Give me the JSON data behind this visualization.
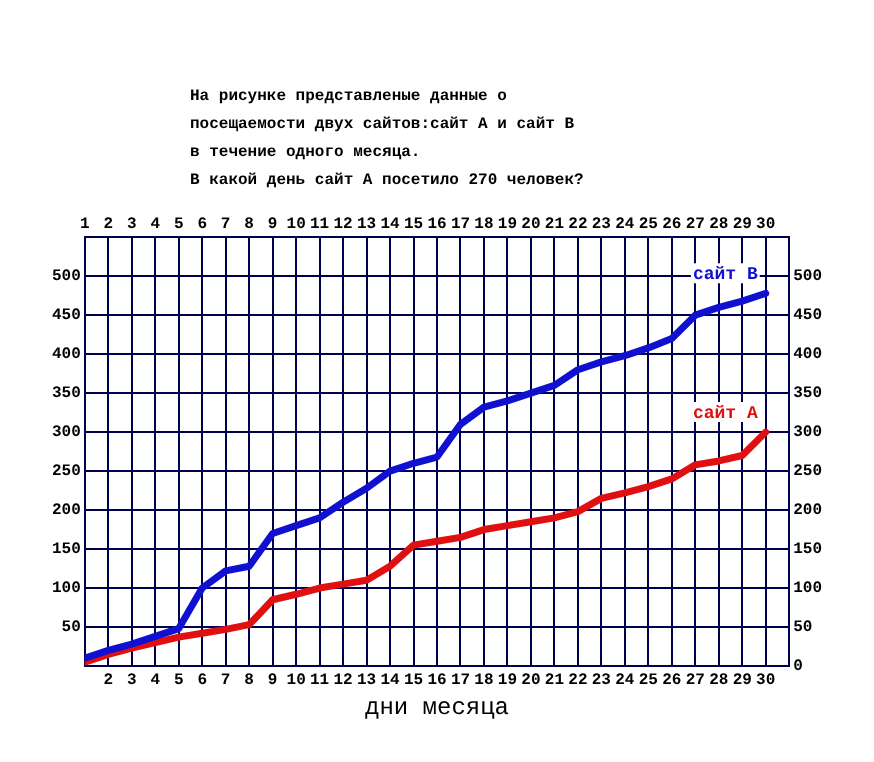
{
  "chart_data": {
    "type": "line",
    "title": "На рисунке представленые данные о\nпосещаемости двух сайтов:сайт А и сайт В\nв течение одного месяца.\nВ какой день сайт А посетило 270 человек?",
    "xlabel": "дни месяца",
    "x": [
      1,
      2,
      3,
      4,
      5,
      6,
      7,
      8,
      9,
      10,
      11,
      12,
      13,
      14,
      15,
      16,
      17,
      18,
      19,
      20,
      21,
      22,
      23,
      24,
      25,
      26,
      27,
      28,
      29,
      30
    ],
    "series": [
      {
        "name": "сайт В",
        "color": "#1010d0",
        "values": [
          10,
          20,
          28,
          38,
          48,
          100,
          122,
          128,
          170,
          180,
          190,
          210,
          228,
          250,
          260,
          268,
          310,
          332,
          340,
          350,
          360,
          380,
          390,
          398,
          408,
          420,
          450,
          460,
          468,
          478
        ]
      },
      {
        "name": "сайт А",
        "color": "#e01010",
        "values": [
          5,
          15,
          23,
          30,
          37,
          42,
          47,
          53,
          85,
          92,
          100,
          105,
          110,
          128,
          155,
          160,
          165,
          175,
          180,
          185,
          190,
          198,
          215,
          222,
          230,
          240,
          258,
          263,
          270,
          300
        ]
      }
    ],
    "xlim": [
      1,
      31
    ],
    "xticks": [
      2,
      3,
      4,
      5,
      6,
      7,
      8,
      9,
      10,
      11,
      12,
      13,
      14,
      15,
      16,
      17,
      18,
      19,
      20,
      21,
      22,
      23,
      24,
      25,
      26,
      27,
      28,
      29,
      30
    ],
    "x2lim": [
      1,
      31
    ],
    "x2ticks": [
      1,
      2,
      3,
      4,
      5,
      6,
      7,
      8,
      9,
      10,
      11,
      12,
      13,
      14,
      15,
      16,
      17,
      18,
      19,
      20,
      21,
      22,
      23,
      24,
      25,
      26,
      27,
      28,
      29,
      30
    ],
    "ylim": [
      0,
      550
    ],
    "yticks": [
      50,
      100,
      150,
      200,
      250,
      300,
      350,
      400,
      450,
      500
    ],
    "y2lim": [
      0,
      550
    ],
    "y2ticks": [
      0,
      50,
      100,
      150,
      200,
      250,
      300,
      350,
      400,
      450,
      500
    ],
    "grid": true,
    "legend": false,
    "marker": "none",
    "line_style": "solid"
  }
}
